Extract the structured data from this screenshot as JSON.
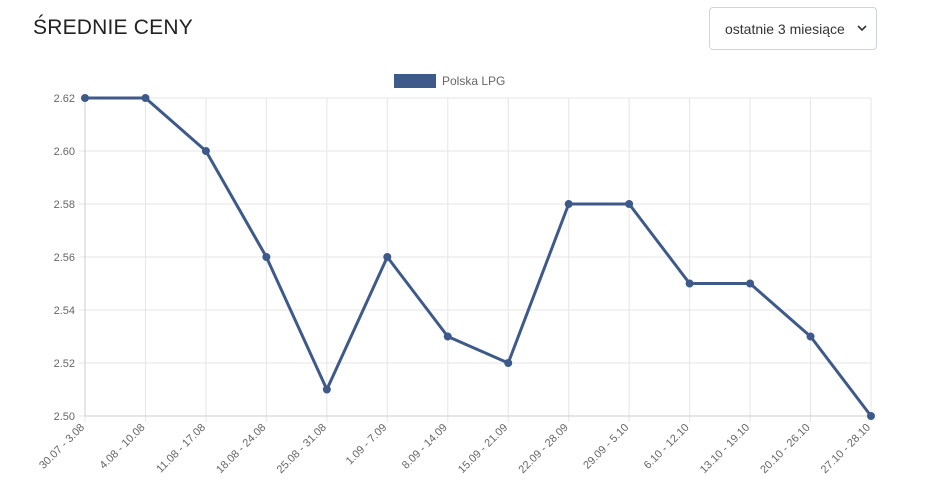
{
  "header": {
    "title": "ŚREDNIE CENY"
  },
  "period_select": {
    "value": "ostatnie 3 miesiące"
  },
  "chart_data": {
    "type": "line",
    "categories": [
      "30.07 - 3.08",
      "4.08 - 10.08",
      "11.08 - 17.08",
      "18.08 - 24.08",
      "25.08 - 31.08",
      "1.09 - 7.09",
      "8.09 - 14.09",
      "15.09 - 21.09",
      "22.09 - 28.09",
      "29.09 - 5.10",
      "6.10 - 12.10",
      "13.10 - 19.10",
      "20.10 - 26.10",
      "27.10 - 28.10"
    ],
    "series": [
      {
        "name": "Polska LPG",
        "color": "#3e5a8a",
        "values": [
          2.62,
          2.62,
          2.6,
          2.56,
          2.51,
          2.56,
          2.53,
          2.52,
          2.58,
          2.58,
          2.55,
          2.55,
          2.53,
          2.5
        ]
      }
    ],
    "ylim": [
      2.5,
      2.62
    ],
    "yticks": [
      "2.50",
      "2.52",
      "2.54",
      "2.56",
      "2.58",
      "2.60",
      "2.62"
    ],
    "grid": true,
    "legend": "top-center"
  }
}
